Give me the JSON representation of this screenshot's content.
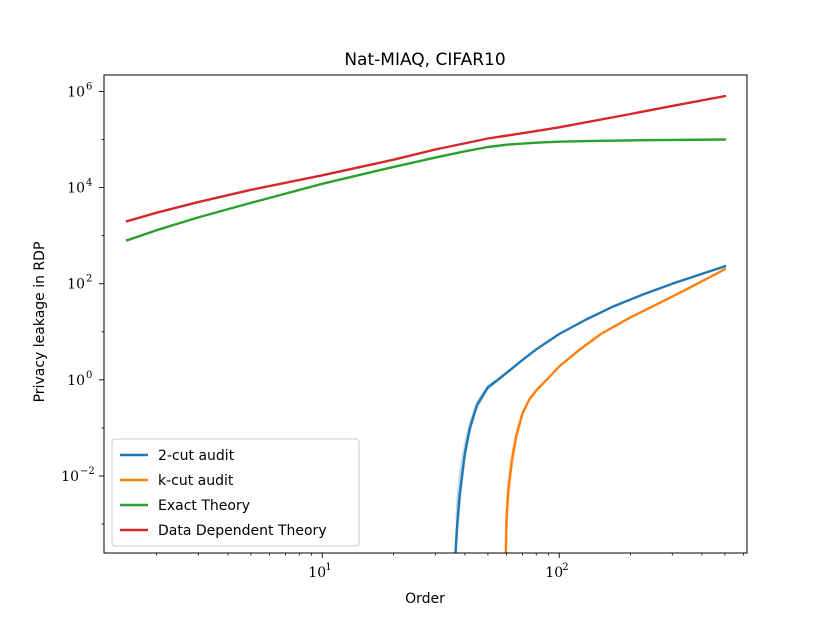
{
  "chart_data": {
    "type": "line",
    "title": "Nat-MIAQ, CIFAR10",
    "xlabel": "Order",
    "ylabel": "Privacy leakage in RDP",
    "xscale": "log",
    "yscale": "log",
    "xlim": [
      1.2,
      620
    ],
    "ylim": [
      0.00025,
      2200000
    ],
    "x_major_ticks": [
      {
        "value": 10,
        "base": "10",
        "exp": "1"
      },
      {
        "value": 100,
        "base": "10",
        "exp": "2"
      }
    ],
    "y_major_ticks": [
      {
        "value": 0.01,
        "base": "10",
        "exp": "−2"
      },
      {
        "value": 1,
        "base": "10",
        "exp": "0"
      },
      {
        "value": 100,
        "base": "10",
        "exp": "2"
      },
      {
        "value": 10000,
        "base": "10",
        "exp": "4"
      },
      {
        "value": 1000000,
        "base": "10",
        "exp": "6"
      }
    ],
    "grid": false,
    "legend_position": "lower-left",
    "series": [
      {
        "name": "2-cut audit",
        "color": "#1f77b4",
        "x": [
          36.5,
          37,
          38,
          40,
          42,
          45,
          50,
          55,
          60,
          70,
          80,
          100,
          130,
          170,
          230,
          300,
          400,
          500
        ],
        "y": [
          0.00025,
          0.0008,
          0.004,
          0.03,
          0.1,
          0.3,
          0.7,
          1.0,
          1.4,
          2.6,
          4.3,
          9.0,
          18,
          34,
          62,
          100,
          160,
          230
        ],
        "band_low": [
          0.00025,
          0.00025,
          0.0015,
          0.018,
          0.07,
          0.24,
          0.6,
          0.9,
          1.3,
          2.5,
          4.2,
          8.9,
          18,
          34,
          62,
          100,
          160,
          230
        ],
        "band_high": [
          0.0015,
          0.005,
          0.015,
          0.06,
          0.15,
          0.38,
          0.8,
          1.1,
          1.5,
          2.7,
          4.4,
          9.1,
          18,
          34,
          62,
          100,
          160,
          230
        ]
      },
      {
        "name": "k-cut audit",
        "color": "#ff7f0e",
        "x": [
          59.5,
          60,
          61,
          63,
          66,
          70,
          75,
          80,
          90,
          100,
          120,
          150,
          200,
          260,
          350,
          500
        ],
        "y": [
          0.00025,
          0.0015,
          0.005,
          0.02,
          0.07,
          0.2,
          0.4,
          0.6,
          1.1,
          1.9,
          4.0,
          9.0,
          20,
          38,
          80,
          200
        ],
        "band_low": [
          0.00025,
          0.00025,
          0.0015,
          0.01,
          0.05,
          0.17,
          0.37,
          0.58,
          1.08,
          1.88,
          4.0,
          9.0,
          20,
          38,
          80,
          200
        ],
        "band_high": [
          0.002,
          0.005,
          0.012,
          0.035,
          0.1,
          0.24,
          0.44,
          0.63,
          1.12,
          1.92,
          4.0,
          9.0,
          20,
          38,
          80,
          200
        ]
      },
      {
        "name": "Exact Theory",
        "color": "#2ca02c",
        "x": [
          1.5,
          2,
          3,
          5,
          10,
          20,
          30,
          40,
          50,
          60,
          80,
          100,
          150,
          200,
          300,
          500
        ],
        "y": [
          800,
          1300,
          2400,
          4800,
          12000,
          27000,
          42000,
          57000,
          70000,
          78000,
          86000,
          90000,
          94000,
          96000,
          98000,
          100000
        ]
      },
      {
        "name": "Data Dependent Theory",
        "color": "#d62728",
        "x": [
          1.5,
          2,
          3,
          5,
          10,
          20,
          30,
          50,
          80,
          100,
          200,
          300,
          500
        ],
        "y": [
          2000,
          3000,
          5000,
          9000,
          18000,
          38000,
          62000,
          105000,
          150000,
          180000,
          340000,
          500000,
          800000
        ]
      }
    ]
  }
}
